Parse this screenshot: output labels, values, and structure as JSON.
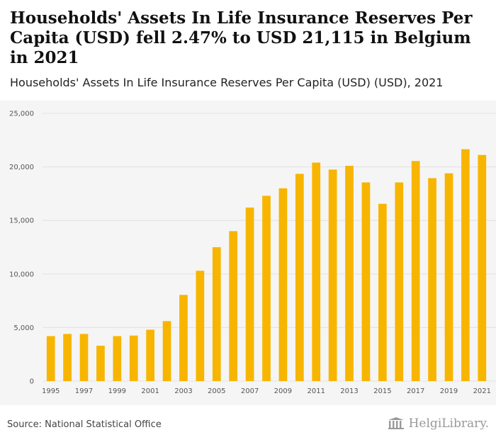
{
  "title": "Households' Assets In Life Insurance Reserves Per Capita (USD) fell 2.47% to USD 21,115 in Belgium in 2021",
  "subtitle": "Households' Assets In Life Insurance Reserves Per Capita (USD) (USD), 2021",
  "source": "Source: National Statistical Office",
  "logo_text": "HelgiLibrary.",
  "colors": {
    "bar": "#f7b500",
    "background": "#f5f5f5",
    "grid": "#e2e2e2"
  },
  "chart_data": {
    "type": "bar",
    "title": "Households' Assets In Life Insurance Reserves Per Capita (USD) (USD), 2021",
    "xlabel": "",
    "ylabel": "",
    "ylim": [
      0,
      25000
    ],
    "yticks": [
      0,
      5000,
      10000,
      15000,
      20000,
      25000
    ],
    "ytick_labels": [
      "0",
      "5,000",
      "10,000",
      "15,000",
      "20,000",
      "25,000"
    ],
    "categories": [
      "1995",
      "1996",
      "1997",
      "1998",
      "1999",
      "2000",
      "2001",
      "2002",
      "2003",
      "2004",
      "2005",
      "2006",
      "2007",
      "2008",
      "2009",
      "2010",
      "2011",
      "2012",
      "2013",
      "2014",
      "2015",
      "2016",
      "2017",
      "2018",
      "2019",
      "2020",
      "2021"
    ],
    "xtick_labels": [
      "1995",
      "",
      "1997",
      "",
      "1999",
      "",
      "2001",
      "",
      "2003",
      "",
      "2005",
      "",
      "2007",
      "",
      "2009",
      "",
      "2011",
      "",
      "2013",
      "",
      "2015",
      "",
      "2017",
      "",
      "2019",
      "",
      "2021"
    ],
    "values": [
      4200,
      4400,
      4400,
      3300,
      4200,
      4250,
      4800,
      5600,
      8050,
      10300,
      12500,
      14000,
      16200,
      17300,
      18000,
      19350,
      20400,
      19750,
      20100,
      18550,
      16550,
      18550,
      20550,
      18950,
      19400,
      21650,
      21115
    ],
    "grid": true
  }
}
